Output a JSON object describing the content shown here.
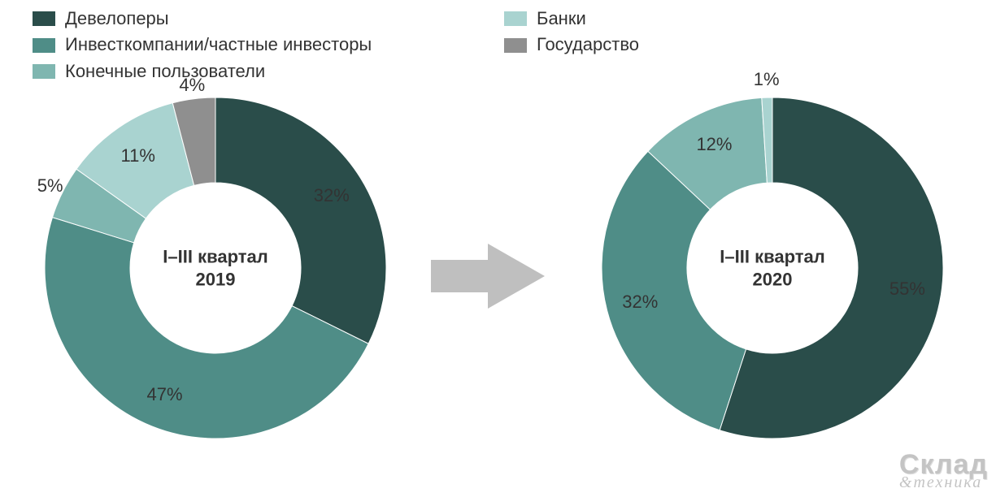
{
  "colors": {
    "background": "#ffffff",
    "text": "#333333",
    "arrow": "#bfbfbf"
  },
  "categories": [
    {
      "key": "developers",
      "label": "Девелоперы",
      "color": "#2a4d4a"
    },
    {
      "key": "investco",
      "label": "Инвесткомпании/частные инвесторы",
      "color": "#4f8d87"
    },
    {
      "key": "endusers",
      "label": "Конечные пользователи",
      "color": "#7fb6b0"
    },
    {
      "key": "banks",
      "label": "Банки",
      "color": "#a9d3d0"
    },
    {
      "key": "gov",
      "label": "Государство",
      "color": "#8f8f8f"
    }
  ],
  "legend_layout": {
    "left_keys": [
      "developers",
      "investco",
      "endusers"
    ],
    "right_keys": [
      "banks",
      "gov"
    ],
    "swatch_w": 28,
    "swatch_h": 18,
    "fontsize": 22
  },
  "donuts": {
    "type": "donut",
    "outer_r": 210,
    "inner_r": 105,
    "start_angle_deg": -90,
    "direction": "cw",
    "label_fontsize": 22,
    "center_label_fontsize": 22,
    "center_label_weight": 700,
    "outer_label_radius": 230,
    "left": {
      "center_line1": "I–III квартал",
      "center_line2": "2019",
      "slices": [
        {
          "key": "developers",
          "value": 32,
          "label": "32%",
          "label_r": 168
        },
        {
          "key": "investco",
          "value": 47,
          "label": "47%",
          "label_r": 168
        },
        {
          "key": "endusers",
          "value": 5,
          "label": "5%",
          "label_r": 227
        },
        {
          "key": "banks",
          "value": 11,
          "label": "11%",
          "label_r": 168
        },
        {
          "key": "gov",
          "value": 4,
          "label": "4%",
          "label_r": 227
        }
      ]
    },
    "right": {
      "center_line1": "I–III квартал",
      "center_line2": "2020",
      "slices": [
        {
          "key": "developers",
          "value": 55,
          "label": "55%",
          "label_r": 168
        },
        {
          "key": "investco",
          "value": 32,
          "label": "32%",
          "label_r": 168
        },
        {
          "key": "endusers",
          "value": 12,
          "label": "12%",
          "label_r": 168
        },
        {
          "key": "banks",
          "value": 1,
          "label": "1%",
          "label_r": 232
        }
      ]
    }
  },
  "watermark": {
    "line1": "Склад",
    "line2": "&техника"
  }
}
